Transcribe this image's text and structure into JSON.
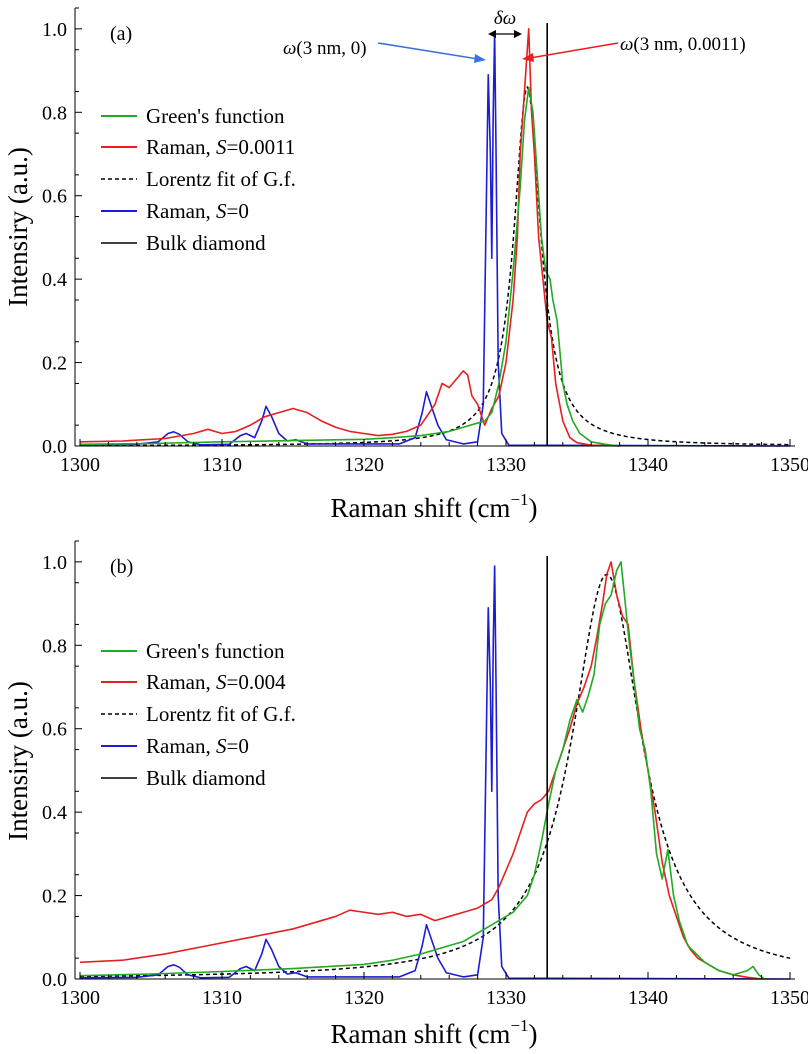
{
  "colors": {
    "green": "#22aa22",
    "red": "#e62020",
    "blue": "#1c1cd6",
    "black": "#000000",
    "annot_blue": "#3b73dc",
    "annot_red": "#e62020"
  },
  "chart_data": [
    {
      "type": "line",
      "panel_label": "(a)",
      "xlabel": "Raman shift (cm",
      "xlabel_sup": "−1",
      "xlabel_close": ")",
      "ylabel": "Intensiry (a.u.)",
      "xlim": [
        1300,
        1350
      ],
      "ylim": [
        0,
        1.05
      ],
      "xticks": [
        1300,
        1310,
        1320,
        1330,
        1340,
        1350
      ],
      "yticks": [
        "0.0",
        "0.2",
        "0.4",
        "0.6",
        "0.8",
        "1.0"
      ],
      "legend": [
        {
          "label": "Green's function",
          "color": "#22aa22",
          "style": "solid"
        },
        {
          "label_pre": "Raman, ",
          "label_var": "S",
          "label_post": "=0.0011",
          "color": "#e62020",
          "style": "solid"
        },
        {
          "label": "Lorentz fit of G.f.",
          "color": "#000000",
          "style": "dashed"
        },
        {
          "label_pre": "Raman, ",
          "label_var": "S",
          "label_post": "=0",
          "color": "#1c1cd6",
          "style": "solid"
        },
        {
          "label": "Bulk diamond",
          "color": "#000000",
          "style": "solid"
        }
      ],
      "bulk_line_x": 1332.9,
      "lorentz": {
        "x0": 1331.5,
        "gamma": 1.15,
        "amp": 0.86
      },
      "annotations": {
        "left_label_pre": "ω",
        "left_label_post": "(3 nm, 0)",
        "right_label_pre": "ω",
        "right_label_post": "(3 nm, 0.0011)",
        "delta_pre": "δω",
        "left_peak_x": 1329.2,
        "right_peak_x": 1331.6
      },
      "series": [
        {
          "name": "Raman, S=0",
          "color": "#1c1cd6",
          "x": [
            1300,
            1304,
            1305.5,
            1306.2,
            1306.6,
            1307,
            1307.6,
            1308.5,
            1310.5,
            1311.3,
            1311.7,
            1312.3,
            1312.8,
            1313.1,
            1313.5,
            1314,
            1314.6,
            1315.2,
            1316,
            1322.5,
            1323.6,
            1324.1,
            1324.4,
            1324.8,
            1325.2,
            1325.8,
            1327,
            1328,
            1328.4,
            1328.6,
            1328.75,
            1328.9,
            1329.0,
            1329.1,
            1329.2,
            1329.3,
            1329.45,
            1329.7,
            1330.2,
            1350
          ],
          "y": [
            0.003,
            0.004,
            0.01,
            0.03,
            0.034,
            0.028,
            0.01,
            0.003,
            0.004,
            0.025,
            0.03,
            0.02,
            0.06,
            0.095,
            0.07,
            0.03,
            0.012,
            0.015,
            0.005,
            0.005,
            0.02,
            0.08,
            0.13,
            0.09,
            0.05,
            0.015,
            0.005,
            0.01,
            0.1,
            0.55,
            0.89,
            0.7,
            0.45,
            0.8,
            0.99,
            0.7,
            0.2,
            0.03,
            0.002,
            0.0
          ]
        },
        {
          "name": "Raman, S=0.0011",
          "color": "#e62020",
          "x": [
            1300,
            1303,
            1306,
            1308,
            1309,
            1310,
            1311,
            1312,
            1313,
            1314,
            1315,
            1316,
            1317,
            1318,
            1319,
            1320,
            1321,
            1322,
            1323,
            1324,
            1325,
            1325.5,
            1326,
            1326.5,
            1327,
            1327.3,
            1327.6,
            1328,
            1328.5,
            1329,
            1329.5,
            1330,
            1330.5,
            1330.8,
            1331,
            1331.3,
            1331.5,
            1331.6,
            1331.8,
            1332,
            1332.3,
            1332.6,
            1332.9,
            1333.2,
            1333.5,
            1334,
            1334.5,
            1335,
            1336,
            1338
          ],
          "y": [
            0.01,
            0.012,
            0.018,
            0.03,
            0.04,
            0.03,
            0.035,
            0.05,
            0.07,
            0.08,
            0.09,
            0.08,
            0.06,
            0.045,
            0.035,
            0.03,
            0.025,
            0.028,
            0.035,
            0.05,
            0.1,
            0.15,
            0.14,
            0.16,
            0.18,
            0.17,
            0.12,
            0.1,
            0.05,
            0.09,
            0.12,
            0.2,
            0.35,
            0.5,
            0.7,
            0.85,
            0.95,
            1.0,
            0.8,
            0.7,
            0.5,
            0.4,
            0.3,
            0.26,
            0.15,
            0.06,
            0.02,
            0.008,
            0.002,
            0.0
          ]
        },
        {
          "name": "Green's function",
          "color": "#22aa22",
          "x": [
            1300,
            1305,
            1310,
            1315,
            1320,
            1322,
            1324,
            1325,
            1326,
            1327,
            1328,
            1328.5,
            1329,
            1329.5,
            1330,
            1330.5,
            1331,
            1331.3,
            1331.6,
            1331.9,
            1332.2,
            1332.5,
            1332.8,
            1333.1,
            1333.3,
            1333.6,
            1334,
            1334.3,
            1334.7,
            1335.2,
            1336,
            1337,
            1338
          ],
          "y": [
            0.004,
            0.006,
            0.01,
            0.013,
            0.016,
            0.02,
            0.025,
            0.03,
            0.035,
            0.045,
            0.055,
            0.06,
            0.08,
            0.15,
            0.25,
            0.42,
            0.62,
            0.78,
            0.86,
            0.8,
            0.65,
            0.5,
            0.42,
            0.4,
            0.35,
            0.3,
            0.15,
            0.1,
            0.06,
            0.03,
            0.01,
            0.004,
            0.0
          ]
        }
      ]
    },
    {
      "type": "line",
      "panel_label": "(b)",
      "xlabel": "Raman shift (cm",
      "xlabel_sup": "−1",
      "xlabel_close": ")",
      "ylabel": "Intensiry (a.u.)",
      "xlim": [
        1300,
        1350
      ],
      "ylim": [
        0,
        1.05
      ],
      "xticks": [
        1300,
        1310,
        1320,
        1330,
        1340,
        1350
      ],
      "yticks": [
        "0.0",
        "0.2",
        "0.4",
        "0.6",
        "0.8",
        "1.0"
      ],
      "legend": [
        {
          "label": "Green's function",
          "color": "#22aa22",
          "style": "solid"
        },
        {
          "label_pre": "Raman, ",
          "label_var": "S",
          "label_post": "=0.004",
          "color": "#e62020",
          "style": "solid"
        },
        {
          "label": "Lorentz fit of G.f.",
          "color": "#000000",
          "style": "dashed"
        },
        {
          "label_pre": "Raman, ",
          "label_var": "S",
          "label_post": "=0",
          "color": "#1c1cd6",
          "style": "solid"
        },
        {
          "label": "Bulk diamond",
          "color": "#000000",
          "style": "solid"
        }
      ],
      "bulk_line_x": 1332.9,
      "lorentz": {
        "x0": 1337.1,
        "gamma": 3.0,
        "amp": 0.97
      },
      "series": [
        {
          "name": "Raman, S=0",
          "color": "#1c1cd6",
          "x": [
            1300,
            1304,
            1305.5,
            1306.2,
            1306.6,
            1307,
            1307.6,
            1308.5,
            1310.5,
            1311.3,
            1311.7,
            1312.3,
            1312.8,
            1313.1,
            1313.5,
            1314,
            1314.6,
            1315.2,
            1316,
            1322.5,
            1323.6,
            1324.1,
            1324.4,
            1324.8,
            1325.2,
            1325.8,
            1327,
            1328,
            1328.4,
            1328.6,
            1328.75,
            1328.9,
            1329.0,
            1329.1,
            1329.2,
            1329.3,
            1329.45,
            1329.7,
            1330.2,
            1350
          ],
          "y": [
            0.003,
            0.004,
            0.01,
            0.03,
            0.034,
            0.028,
            0.01,
            0.003,
            0.004,
            0.025,
            0.03,
            0.02,
            0.06,
            0.095,
            0.07,
            0.03,
            0.012,
            0.015,
            0.005,
            0.005,
            0.02,
            0.08,
            0.13,
            0.09,
            0.05,
            0.015,
            0.005,
            0.01,
            0.1,
            0.55,
            0.89,
            0.7,
            0.45,
            0.8,
            0.99,
            0.7,
            0.2,
            0.03,
            0.002,
            0.0
          ]
        },
        {
          "name": "Raman, S=0.004",
          "color": "#e62020",
          "x": [
            1300,
            1303,
            1306,
            1309,
            1312,
            1315,
            1318,
            1319,
            1320,
            1321,
            1322,
            1323,
            1324,
            1325,
            1326,
            1327,
            1328,
            1329,
            1329.5,
            1330,
            1330.5,
            1331,
            1331.5,
            1332,
            1332.5,
            1333,
            1333.5,
            1334,
            1334.5,
            1335,
            1335.5,
            1336,
            1336.4,
            1336.8,
            1337.1,
            1337.4,
            1337.8,
            1338.2,
            1338.6,
            1339,
            1339.5,
            1340,
            1340.5,
            1341,
            1341.5,
            1342,
            1342.5,
            1343,
            1343.5,
            1344,
            1345,
            1346,
            1347,
            1348
          ],
          "y": [
            0.04,
            0.045,
            0.06,
            0.08,
            0.1,
            0.12,
            0.15,
            0.165,
            0.16,
            0.155,
            0.16,
            0.15,
            0.155,
            0.14,
            0.15,
            0.16,
            0.17,
            0.19,
            0.22,
            0.26,
            0.3,
            0.35,
            0.4,
            0.42,
            0.43,
            0.45,
            0.5,
            0.55,
            0.6,
            0.66,
            0.7,
            0.75,
            0.82,
            0.9,
            0.97,
            1.0,
            0.92,
            0.87,
            0.85,
            0.72,
            0.6,
            0.5,
            0.4,
            0.28,
            0.2,
            0.15,
            0.1,
            0.07,
            0.05,
            0.04,
            0.02,
            0.01,
            0.004,
            0.0
          ]
        },
        {
          "name": "Green's function",
          "color": "#22aa22",
          "x": [
            1300,
            1305,
            1310,
            1315,
            1320,
            1322,
            1324,
            1326,
            1327,
            1328,
            1329,
            1330,
            1330.5,
            1331,
            1331.5,
            1332,
            1332.5,
            1333,
            1333.5,
            1334,
            1334.5,
            1335,
            1335.4,
            1335.8,
            1336.2,
            1336.6,
            1337,
            1337.4,
            1337.8,
            1338.1,
            1338.4,
            1338.7,
            1339,
            1339.4,
            1339.8,
            1340.2,
            1340.6,
            1341,
            1341.4,
            1341.8,
            1342.2,
            1342.8,
            1343.4,
            1344,
            1345,
            1346,
            1347,
            1347.4,
            1347.8,
            1348.2
          ],
          "y": [
            0.008,
            0.012,
            0.018,
            0.025,
            0.035,
            0.045,
            0.06,
            0.08,
            0.09,
            0.11,
            0.13,
            0.15,
            0.16,
            0.18,
            0.2,
            0.25,
            0.33,
            0.42,
            0.5,
            0.55,
            0.62,
            0.67,
            0.64,
            0.68,
            0.73,
            0.85,
            0.9,
            0.92,
            0.98,
            1.0,
            0.9,
            0.8,
            0.72,
            0.6,
            0.55,
            0.45,
            0.3,
            0.24,
            0.31,
            0.2,
            0.14,
            0.08,
            0.06,
            0.04,
            0.02,
            0.01,
            0.02,
            0.03,
            0.01,
            0.0
          ]
        }
      ]
    }
  ]
}
